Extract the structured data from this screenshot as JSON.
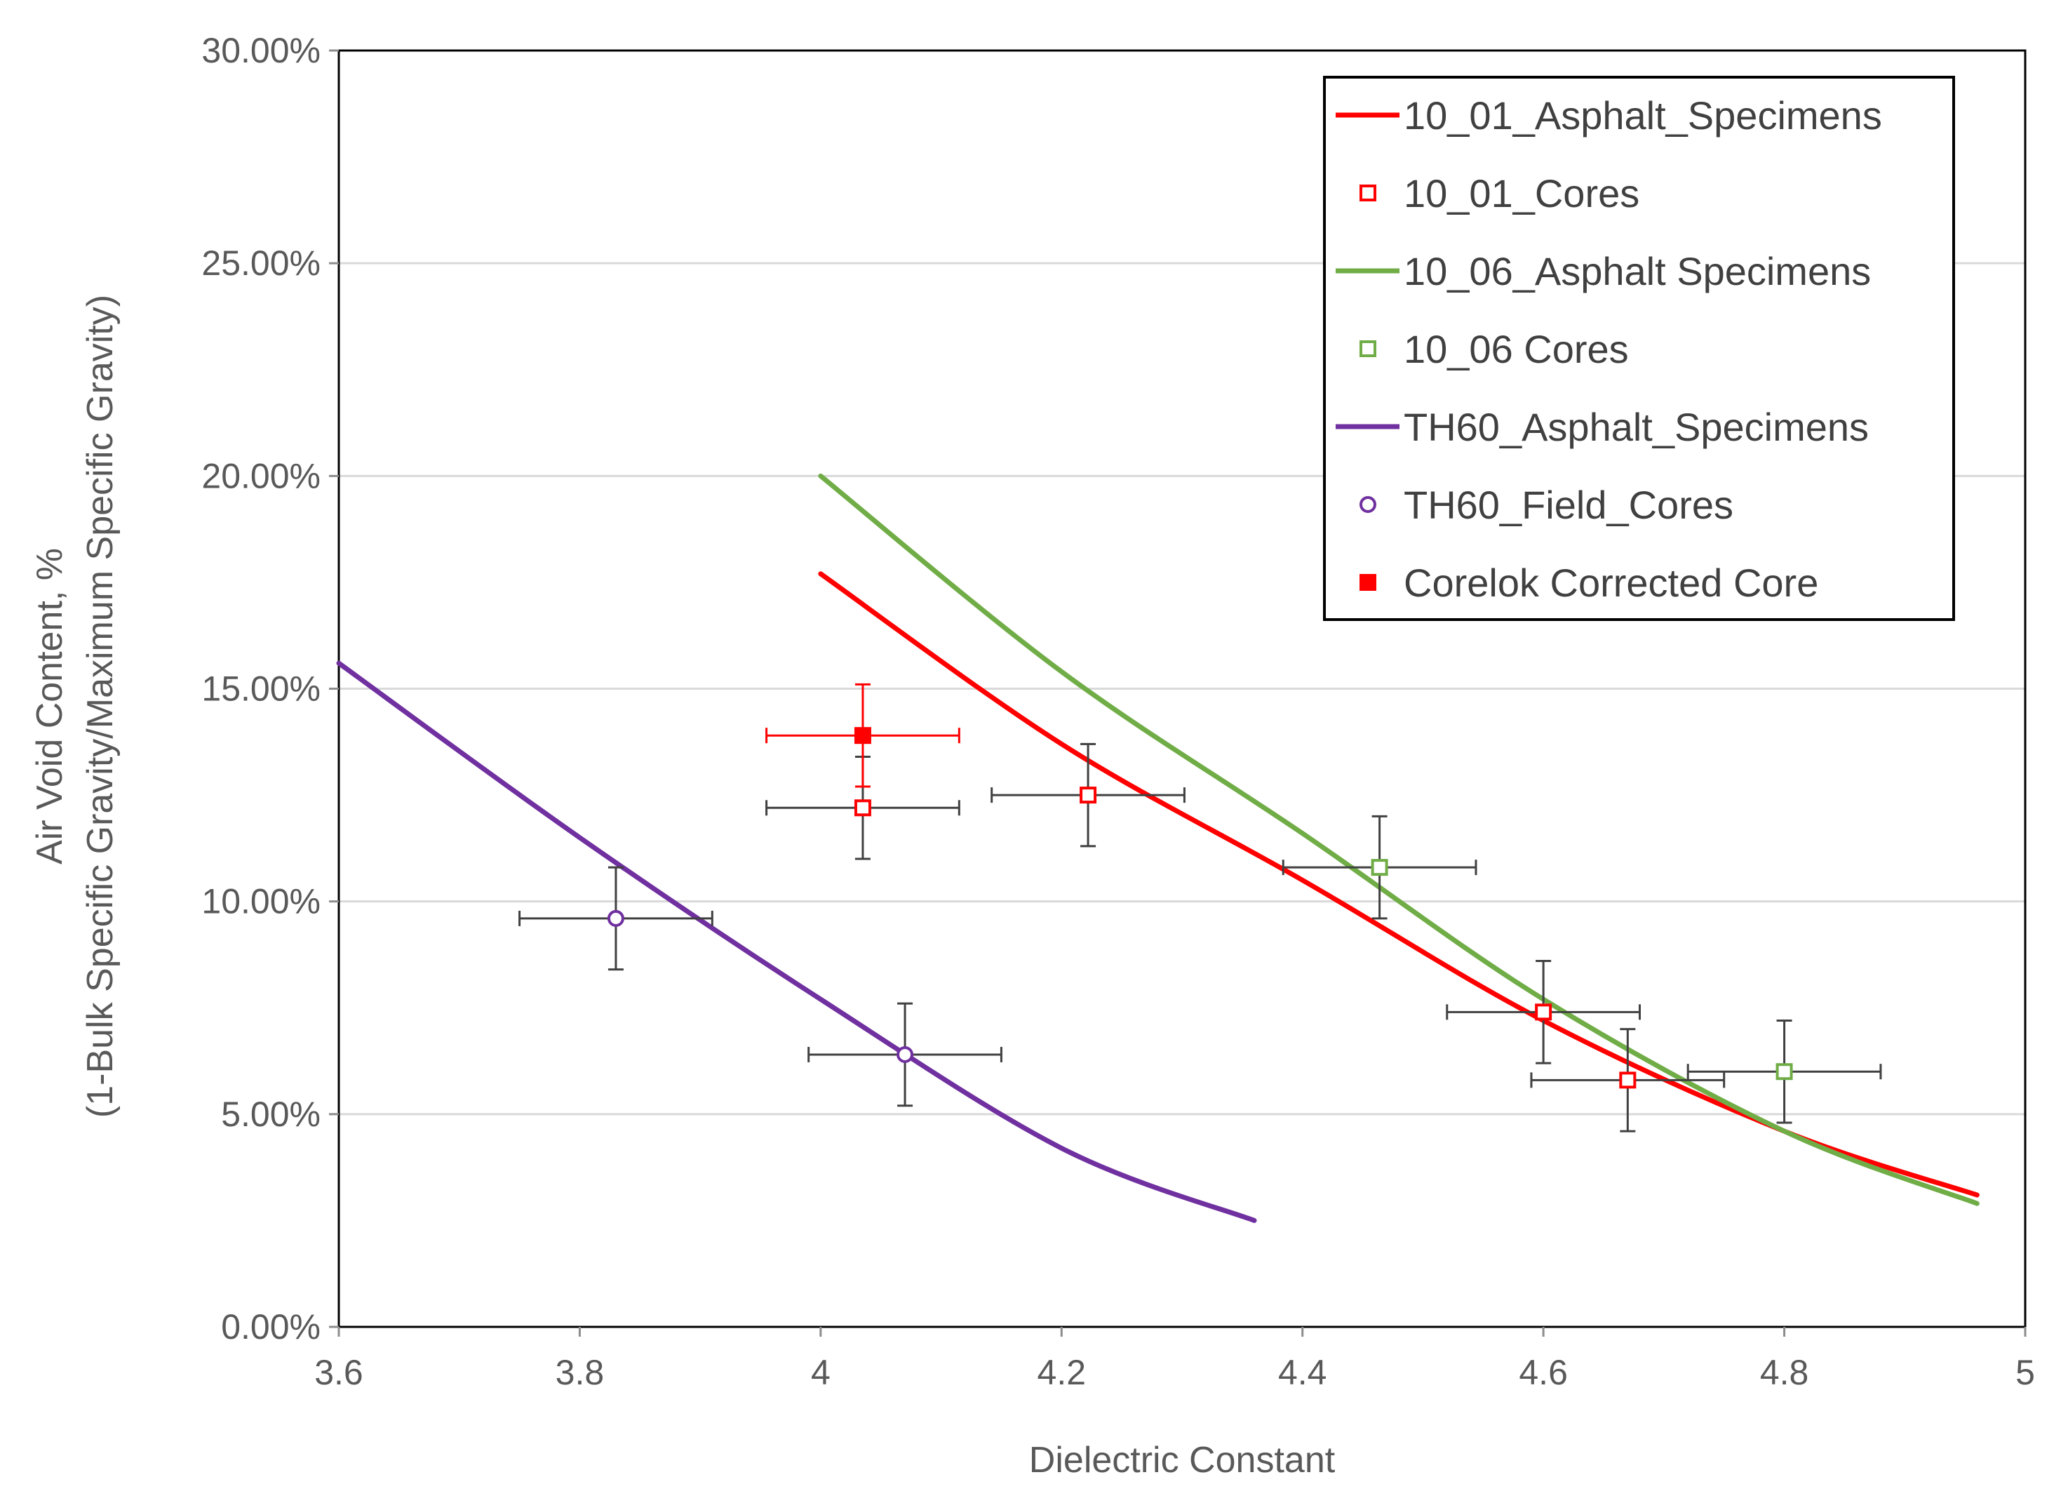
{
  "chart_data": {
    "type": "scatter",
    "title": "",
    "xlabel": "Dielectric Constant",
    "ylabel_lines": [
      "Air Void Content, %",
      "(1-Bulk Specific Gravity/Maximum Specific Gravity)"
    ],
    "xlim": [
      3.6,
      5
    ],
    "ylim": [
      0,
      0.3
    ],
    "x_ticks": [
      3.6,
      3.8,
      4,
      4.2,
      4.4,
      4.6,
      4.8,
      5
    ],
    "x_tick_labels": [
      "3.6",
      "3.8",
      "4",
      "4.2",
      "4.4",
      "4.6",
      "4.8",
      "5"
    ],
    "y_ticks": [
      0,
      0.05,
      0.1,
      0.15,
      0.2,
      0.25,
      0.3
    ],
    "y_tick_labels": [
      "0.00%",
      "5.00%",
      "10.00%",
      "15.00%",
      "20.00%",
      "25.00%",
      "30.00%"
    ],
    "grid": "horizontal",
    "legend_position": "top-right",
    "series": [
      {
        "name": "10_01_Asphalt_Specimens",
        "kind": "line",
        "color": "#ff0000",
        "points": [
          [
            4.0,
            0.177
          ],
          [
            4.2,
            0.137
          ],
          [
            4.4,
            0.105
          ],
          [
            4.6,
            0.072
          ],
          [
            4.8,
            0.046
          ],
          [
            4.96,
            0.031
          ]
        ]
      },
      {
        "name": "10_01_Cores",
        "kind": "points",
        "marker": "square-open",
        "color": "#ff0000",
        "points": [
          {
            "x": 4.035,
            "y": 0.122,
            "xerr": 0.08,
            "yerr": 0.012
          },
          {
            "x": 4.222,
            "y": 0.125,
            "xerr": 0.08,
            "yerr": 0.012
          },
          {
            "x": 4.6,
            "y": 0.074,
            "xerr": 0.08,
            "yerr": 0.012
          },
          {
            "x": 4.67,
            "y": 0.058,
            "xerr": 0.08,
            "yerr": 0.012
          }
        ]
      },
      {
        "name": "10_06_Asphalt Specimens",
        "kind": "line",
        "color": "#70ad47",
        "points": [
          [
            4.0,
            0.2
          ],
          [
            4.2,
            0.154
          ],
          [
            4.4,
            0.116
          ],
          [
            4.6,
            0.077
          ],
          [
            4.8,
            0.046
          ],
          [
            4.96,
            0.029
          ]
        ]
      },
      {
        "name": "10_06 Cores",
        "kind": "points",
        "marker": "square-open",
        "color": "#70ad47",
        "points": [
          {
            "x": 4.464,
            "y": 0.108,
            "xerr": 0.08,
            "yerr": 0.012
          },
          {
            "x": 4.8,
            "y": 0.06,
            "xerr": 0.08,
            "yerr": 0.012
          }
        ]
      },
      {
        "name": "TH60_Asphalt_Specimens",
        "kind": "line",
        "color": "#7030a0",
        "points": [
          [
            3.6,
            0.156
          ],
          [
            3.8,
            0.115
          ],
          [
            4.0,
            0.077
          ],
          [
            4.2,
            0.042
          ],
          [
            4.36,
            0.025
          ]
        ]
      },
      {
        "name": "TH60_Field_Cores",
        "kind": "points",
        "marker": "circle-open",
        "color": "#7030a0",
        "points": [
          {
            "x": 3.83,
            "y": 0.096,
            "xerr": 0.08,
            "yerr": 0.012
          },
          {
            "x": 4.07,
            "y": 0.064,
            "xerr": 0.08,
            "yerr": 0.012
          }
        ]
      },
      {
        "name": "Corelok Corrected Core",
        "kind": "points",
        "marker": "square-filled",
        "color": "#ff0000",
        "points": [
          {
            "x": 4.035,
            "y": 0.139,
            "xerr": 0.08,
            "yerr": 0.012
          }
        ]
      }
    ]
  },
  "colors": {
    "error_bar": "#404040",
    "grid": "#d9d9d9",
    "axis": "#8c8c8c"
  }
}
